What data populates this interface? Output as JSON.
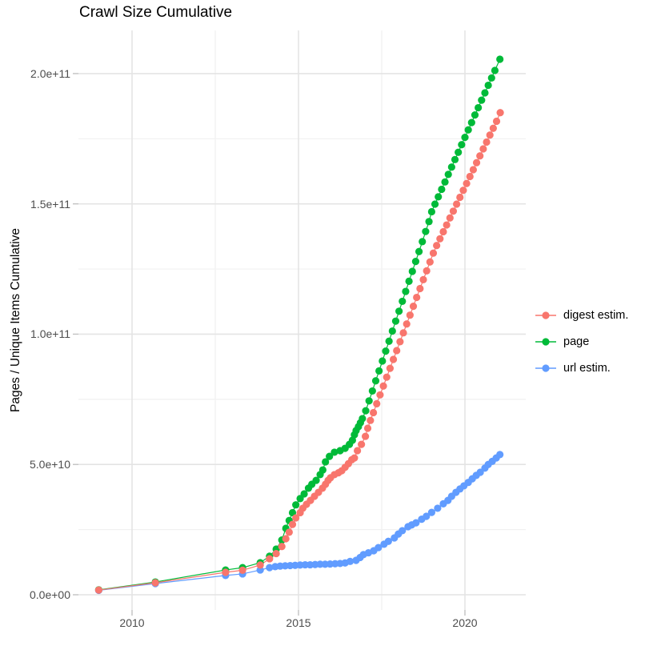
{
  "title": "Crawl Size Cumulative",
  "y_axis": {
    "label": "Pages / Unique Items Cumulative",
    "unit": "items (absolute count), tick values given in billions (1e9)",
    "ticks": [
      {
        "label": "0.0e+00",
        "value": 0
      },
      {
        "label": "5.0e+10",
        "value": 50
      },
      {
        "label": "1.0e+11",
        "value": 100
      },
      {
        "label": "1.5e+11",
        "value": 150
      },
      {
        "label": "2.0e+11",
        "value": 200
      }
    ],
    "minor": [
      25,
      75,
      125,
      175
    ]
  },
  "x_axis": {
    "ticks": [
      {
        "label": "2010",
        "value": 2010
      },
      {
        "label": "2015",
        "value": 2015
      },
      {
        "label": "2020",
        "value": 2020
      }
    ],
    "minor": [
      2012.5,
      2017.5
    ]
  },
  "legend": {
    "position": "right",
    "items": [
      {
        "label": "digest estim.",
        "color": "#F8766D"
      },
      {
        "label": "page",
        "color": "#00BA38"
      },
      {
        "label": "url estim.",
        "color": "#619CFF"
      }
    ]
  },
  "colors": {
    "digest": "#F8766D",
    "page": "#00BA38",
    "url": "#619CFF",
    "grid_major": "#e4e4e4",
    "grid_minor": "#f1f1f1",
    "tick_mark": "#c2c2c2",
    "tick_text": "#4d4d4d",
    "text": "#000000",
    "background": "#ffffff"
  },
  "chart_data": {
    "type": "line",
    "style": "line+point (cumulative crawl size over time)",
    "title": "Crawl Size Cumulative",
    "xlabel": "",
    "ylabel": "Pages / Unique Items Cumulative",
    "x_range": [
      2008.4,
      2021.85
    ],
    "y_range_billions": [
      -6,
      216.5
    ],
    "value_unit": "1e9",
    "grid": "major and minor, light grey on white",
    "legend_position": "right",
    "draw_order": [
      "page",
      "url estim.",
      "digest estim."
    ],
    "series": [
      {
        "name": "digest estim.",
        "color": "#F8766D",
        "points": [
          [
            2009.0,
            1.8
          ],
          [
            2010.7,
            4.6
          ],
          [
            2012.81,
            8.6
          ],
          [
            2013.32,
            9.4
          ],
          [
            2013.85,
            11.4
          ],
          [
            2014.13,
            13.8
          ],
          [
            2014.33,
            15.8
          ],
          [
            2014.5,
            18.5
          ],
          [
            2014.62,
            21.5
          ],
          [
            2014.72,
            24.0
          ],
          [
            2014.82,
            27.0
          ],
          [
            2014.92,
            29.5
          ],
          [
            2015.05,
            31.5
          ],
          [
            2015.13,
            33.2
          ],
          [
            2015.24,
            34.7
          ],
          [
            2015.36,
            36.2
          ],
          [
            2015.48,
            37.8
          ],
          [
            2015.6,
            39.3
          ],
          [
            2015.72,
            40.9
          ],
          [
            2015.81,
            42.4
          ],
          [
            2015.89,
            43.9
          ],
          [
            2015.96,
            44.9
          ],
          [
            2016.08,
            46.1
          ],
          [
            2016.2,
            46.8
          ],
          [
            2016.3,
            47.6
          ],
          [
            2016.4,
            48.9
          ],
          [
            2016.5,
            50.3
          ],
          [
            2016.6,
            51.8
          ],
          [
            2016.68,
            52.5
          ],
          [
            2016.77,
            55.3
          ],
          [
            2016.89,
            57.7
          ],
          [
            2017.01,
            60.8
          ],
          [
            2017.08,
            63.9
          ],
          [
            2017.16,
            66.9
          ],
          [
            2017.25,
            69.9
          ],
          [
            2017.35,
            73.3
          ],
          [
            2017.45,
            76.7
          ],
          [
            2017.55,
            80.1
          ],
          [
            2017.65,
            83.5
          ],
          [
            2017.75,
            86.9
          ],
          [
            2017.85,
            90.3
          ],
          [
            2017.95,
            93.7
          ],
          [
            2018.05,
            97.1
          ],
          [
            2018.15,
            100.5
          ],
          [
            2018.25,
            103.9
          ],
          [
            2018.35,
            107.3
          ],
          [
            2018.45,
            110.7
          ],
          [
            2018.55,
            114.1
          ],
          [
            2018.65,
            117.5
          ],
          [
            2018.75,
            120.9
          ],
          [
            2018.85,
            124.3
          ],
          [
            2018.95,
            127.7
          ],
          [
            2019.05,
            131.1
          ],
          [
            2019.15,
            134.0
          ],
          [
            2019.25,
            136.6
          ],
          [
            2019.35,
            139.3
          ],
          [
            2019.45,
            141.9
          ],
          [
            2019.55,
            144.6
          ],
          [
            2019.65,
            147.2
          ],
          [
            2019.75,
            149.9
          ],
          [
            2019.85,
            152.5
          ],
          [
            2019.95,
            155.2
          ],
          [
            2020.05,
            157.8
          ],
          [
            2020.15,
            160.5
          ],
          [
            2020.25,
            163.1
          ],
          [
            2020.35,
            165.8
          ],
          [
            2020.45,
            168.4
          ],
          [
            2020.55,
            171.1
          ],
          [
            2020.65,
            173.7
          ],
          [
            2020.75,
            176.4
          ],
          [
            2020.85,
            179.0
          ],
          [
            2020.95,
            181.7
          ],
          [
            2021.06,
            185.0
          ]
        ]
      },
      {
        "name": "page",
        "color": "#00BA38",
        "points": [
          [
            2009.0,
            1.9
          ],
          [
            2010.7,
            4.9
          ],
          [
            2012.81,
            9.5
          ],
          [
            2013.32,
            10.4
          ],
          [
            2013.85,
            12.3
          ],
          [
            2014.13,
            14.8
          ],
          [
            2014.33,
            17.5
          ],
          [
            2014.5,
            21.0
          ],
          [
            2014.62,
            25.5
          ],
          [
            2014.72,
            28.5
          ],
          [
            2014.82,
            31.5
          ],
          [
            2014.92,
            34.5
          ],
          [
            2015.05,
            36.9
          ],
          [
            2015.17,
            38.7
          ],
          [
            2015.3,
            40.9
          ],
          [
            2015.4,
            42.4
          ],
          [
            2015.53,
            43.9
          ],
          [
            2015.65,
            46.1
          ],
          [
            2015.73,
            47.9
          ],
          [
            2015.81,
            51.0
          ],
          [
            2015.93,
            53.1
          ],
          [
            2016.08,
            54.7
          ],
          [
            2016.25,
            55.3
          ],
          [
            2016.4,
            56.2
          ],
          [
            2016.53,
            57.7
          ],
          [
            2016.62,
            59.3
          ],
          [
            2016.68,
            61.4
          ],
          [
            2016.73,
            63.0
          ],
          [
            2016.8,
            64.5
          ],
          [
            2016.86,
            66.0
          ],
          [
            2016.92,
            67.6
          ],
          [
            2017.02,
            70.6
          ],
          [
            2017.12,
            74.4
          ],
          [
            2017.22,
            78.2
          ],
          [
            2017.32,
            82.1
          ],
          [
            2017.42,
            85.9
          ],
          [
            2017.52,
            89.7
          ],
          [
            2017.62,
            93.5
          ],
          [
            2017.72,
            97.3
          ],
          [
            2017.82,
            101.2
          ],
          [
            2017.92,
            105.0
          ],
          [
            2018.02,
            108.8
          ],
          [
            2018.12,
            112.6
          ],
          [
            2018.22,
            116.4
          ],
          [
            2018.32,
            120.3
          ],
          [
            2018.42,
            124.1
          ],
          [
            2018.52,
            127.9
          ],
          [
            2018.62,
            131.7
          ],
          [
            2018.72,
            135.5
          ],
          [
            2018.82,
            139.4
          ],
          [
            2018.92,
            143.2
          ],
          [
            2019.0,
            147.0
          ],
          [
            2019.1,
            149.9
          ],
          [
            2019.2,
            152.7
          ],
          [
            2019.3,
            155.6
          ],
          [
            2019.4,
            158.4
          ],
          [
            2019.5,
            161.3
          ],
          [
            2019.6,
            164.1
          ],
          [
            2019.7,
            167.0
          ],
          [
            2019.8,
            169.8
          ],
          [
            2019.9,
            172.7
          ],
          [
            2020.0,
            175.5
          ],
          [
            2020.1,
            178.4
          ],
          [
            2020.2,
            181.2
          ],
          [
            2020.3,
            184.1
          ],
          [
            2020.4,
            186.9
          ],
          [
            2020.5,
            189.8
          ],
          [
            2020.6,
            192.6
          ],
          [
            2020.7,
            195.5
          ],
          [
            2020.8,
            198.3
          ],
          [
            2020.9,
            201.2
          ],
          [
            2021.05,
            205.5
          ]
        ]
      },
      {
        "name": "url estim.",
        "color": "#619CFF",
        "points": [
          [
            2009.0,
            1.7
          ],
          [
            2010.7,
            4.3
          ],
          [
            2012.81,
            7.4
          ],
          [
            2013.32,
            8.0
          ],
          [
            2013.85,
            9.5
          ],
          [
            2014.13,
            10.4
          ],
          [
            2014.3,
            10.8
          ],
          [
            2014.45,
            11.0
          ],
          [
            2014.6,
            11.1
          ],
          [
            2014.75,
            11.2
          ],
          [
            2014.9,
            11.3
          ],
          [
            2015.05,
            11.4
          ],
          [
            2015.2,
            11.5
          ],
          [
            2015.35,
            11.5
          ],
          [
            2015.5,
            11.6
          ],
          [
            2015.65,
            11.7
          ],
          [
            2015.8,
            11.7
          ],
          [
            2015.95,
            11.8
          ],
          [
            2016.1,
            11.9
          ],
          [
            2016.25,
            12.0
          ],
          [
            2016.4,
            12.2
          ],
          [
            2016.55,
            12.8
          ],
          [
            2016.73,
            13.2
          ],
          [
            2016.85,
            14.3
          ],
          [
            2016.95,
            15.4
          ],
          [
            2017.1,
            16.1
          ],
          [
            2017.26,
            16.9
          ],
          [
            2017.4,
            18.1
          ],
          [
            2017.57,
            19.4
          ],
          [
            2017.7,
            20.5
          ],
          [
            2017.88,
            21.8
          ],
          [
            2018.0,
            23.3
          ],
          [
            2018.12,
            24.6
          ],
          [
            2018.29,
            26.1
          ],
          [
            2018.4,
            26.8
          ],
          [
            2018.53,
            27.6
          ],
          [
            2018.7,
            29.0
          ],
          [
            2018.84,
            30.1
          ],
          [
            2019.0,
            31.6
          ],
          [
            2019.18,
            33.2
          ],
          [
            2019.35,
            34.9
          ],
          [
            2019.49,
            36.2
          ],
          [
            2019.6,
            37.8
          ],
          [
            2019.73,
            39.3
          ],
          [
            2019.85,
            40.6
          ],
          [
            2019.97,
            41.8
          ],
          [
            2020.1,
            43.1
          ],
          [
            2020.22,
            44.5
          ],
          [
            2020.34,
            45.8
          ],
          [
            2020.46,
            47.0
          ],
          [
            2020.6,
            48.6
          ],
          [
            2020.7,
            50.0
          ],
          [
            2020.82,
            51.2
          ],
          [
            2020.94,
            52.5
          ],
          [
            2021.05,
            53.8
          ]
        ]
      }
    ]
  }
}
